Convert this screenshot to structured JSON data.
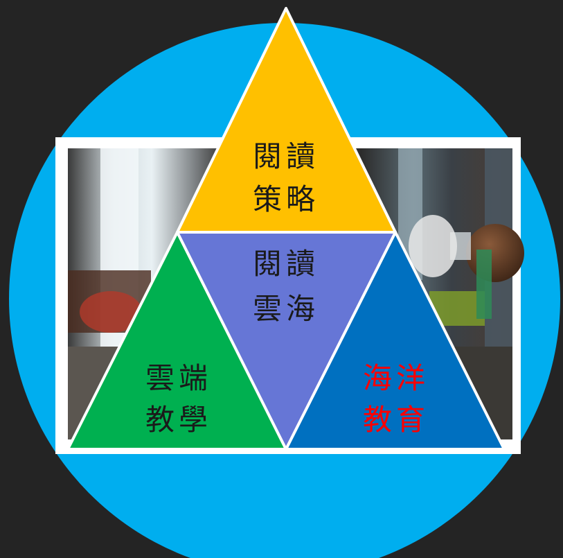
{
  "colors": {
    "background": "#242424",
    "circle": "#00aeef",
    "top_triangle": "#ffc000",
    "center_triangle": "#6676d6",
    "left_triangle": "#00b050",
    "right_triangle": "#0070c0",
    "text_dark": "#1a1a1a",
    "text_red": "#ff0000"
  },
  "triangles": {
    "top": {
      "line1": "閱讀",
      "line2": "策略"
    },
    "center": {
      "line1": "閱讀",
      "line2": "雲海"
    },
    "left": {
      "line1": "雲端",
      "line2": "教學"
    },
    "right": {
      "line1": "海洋",
      "line2": "教育"
    }
  },
  "photo": {
    "icon": "museum-interior-photo"
  }
}
